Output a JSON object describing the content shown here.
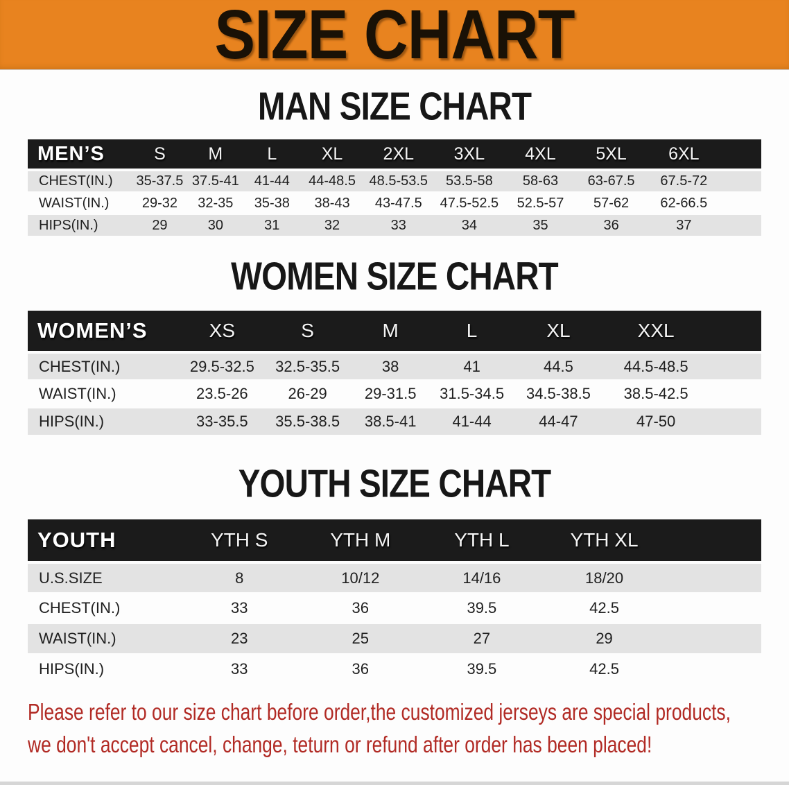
{
  "banner": {
    "title": "SIZE CHART"
  },
  "sections": [
    {
      "id": "men",
      "title": "MAN SIZE CHART",
      "table": {
        "header_label": "MEN’S",
        "columns": [
          "S",
          "M",
          "L",
          "XL",
          "2XL",
          "3XL",
          "4XL",
          "5XL",
          "6XL"
        ],
        "rows": [
          {
            "label": "CHEST(IN.)",
            "values": [
              "35-37.5",
              "37.5-41",
              "41-44",
              "44-48.5",
              "48.5-53.5",
              "53.5-58",
              "58-63",
              "63-67.5",
              "67.5-72"
            ]
          },
          {
            "label": "WAIST(IN.)",
            "values": [
              "29-32",
              "32-35",
              "35-38",
              "38-43",
              "43-47.5",
              "47.5-52.5",
              "52.5-57",
              "57-62",
              "62-66.5"
            ]
          },
          {
            "label": "HIPS(IN.)",
            "values": [
              "29",
              "30",
              "31",
              "32",
              "33",
              "34",
              "35",
              "36",
              "37"
            ]
          }
        ]
      }
    },
    {
      "id": "women",
      "title": "WOMEN SIZE CHART",
      "table": {
        "header_label": "WOMEN’S",
        "columns": [
          "XS",
          "S",
          "M",
          "L",
          "XL",
          "XXL"
        ],
        "rows": [
          {
            "label": "CHEST(IN.)",
            "values": [
              "29.5-32.5",
              "32.5-35.5",
              "38",
              "41",
              "44.5",
              "44.5-48.5"
            ]
          },
          {
            "label": "WAIST(IN.)",
            "values": [
              "23.5-26",
              "26-29",
              "29-31.5",
              "31.5-34.5",
              "34.5-38.5",
              "38.5-42.5"
            ]
          },
          {
            "label": "HIPS(IN.)",
            "values": [
              "33-35.5",
              "35.5-38.5",
              "38.5-41",
              "41-44",
              "44-47",
              "47-50"
            ]
          }
        ]
      }
    },
    {
      "id": "youth",
      "title": "YOUTH SIZE CHART",
      "table": {
        "header_label": "YOUTH",
        "columns": [
          "YTH S",
          "YTH M",
          "YTH L",
          "YTH XL"
        ],
        "rows": [
          {
            "label": "U.S.SIZE",
            "values": [
              "8",
              "10/12",
              "14/16",
              "18/20"
            ]
          },
          {
            "label": "CHEST(IN.)",
            "values": [
              "33",
              "36",
              "39.5",
              "42.5"
            ]
          },
          {
            "label": "WAIST(IN.)",
            "values": [
              "23",
              "25",
              "27",
              "29"
            ]
          },
          {
            "label": "HIPS(IN.)",
            "values": [
              "33",
              "36",
              "39.5",
              "42.5"
            ]
          }
        ]
      }
    }
  ],
  "notice": {
    "lines": [
      "Please refer to our size chart before order,the customized jerseys are special products,",
      "we don't accept cancel, change, teturn or refund after order has been placed!"
    ]
  },
  "colors": {
    "banner_bg": "#e8831f",
    "header_bar_bg": "#1b1b1b",
    "row_stripe": "#e3e3e3",
    "notice_text": "#b12a24"
  }
}
